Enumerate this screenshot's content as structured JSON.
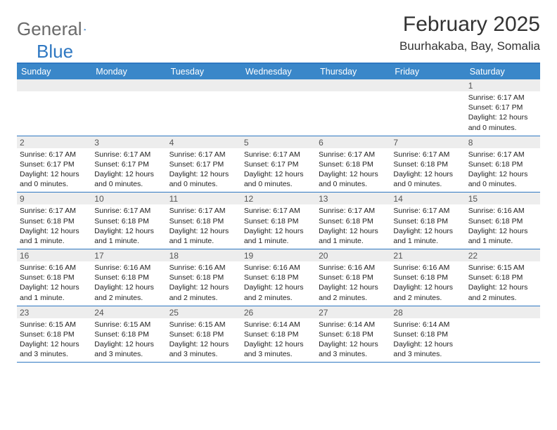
{
  "brand": {
    "part1": "General",
    "part2": "Blue"
  },
  "title": "February 2025",
  "location": "Buurhakaba, Bay, Somalia",
  "colors": {
    "header_bg": "#3a87c9",
    "border": "#2f78c2",
    "daynum_bg": "#ededed",
    "logo_gray": "#6a6a6a",
    "logo_blue": "#2f78c2"
  },
  "days_of_week": [
    "Sunday",
    "Monday",
    "Tuesday",
    "Wednesday",
    "Thursday",
    "Friday",
    "Saturday"
  ],
  "weeks": [
    [
      {
        "n": "",
        "sr": "",
        "ss": "",
        "dl": ""
      },
      {
        "n": "",
        "sr": "",
        "ss": "",
        "dl": ""
      },
      {
        "n": "",
        "sr": "",
        "ss": "",
        "dl": ""
      },
      {
        "n": "",
        "sr": "",
        "ss": "",
        "dl": ""
      },
      {
        "n": "",
        "sr": "",
        "ss": "",
        "dl": ""
      },
      {
        "n": "",
        "sr": "",
        "ss": "",
        "dl": ""
      },
      {
        "n": "1",
        "sr": "Sunrise: 6:17 AM",
        "ss": "Sunset: 6:17 PM",
        "dl": "Daylight: 12 hours and 0 minutes."
      }
    ],
    [
      {
        "n": "2",
        "sr": "Sunrise: 6:17 AM",
        "ss": "Sunset: 6:17 PM",
        "dl": "Daylight: 12 hours and 0 minutes."
      },
      {
        "n": "3",
        "sr": "Sunrise: 6:17 AM",
        "ss": "Sunset: 6:17 PM",
        "dl": "Daylight: 12 hours and 0 minutes."
      },
      {
        "n": "4",
        "sr": "Sunrise: 6:17 AM",
        "ss": "Sunset: 6:17 PM",
        "dl": "Daylight: 12 hours and 0 minutes."
      },
      {
        "n": "5",
        "sr": "Sunrise: 6:17 AM",
        "ss": "Sunset: 6:17 PM",
        "dl": "Daylight: 12 hours and 0 minutes."
      },
      {
        "n": "6",
        "sr": "Sunrise: 6:17 AM",
        "ss": "Sunset: 6:18 PM",
        "dl": "Daylight: 12 hours and 0 minutes."
      },
      {
        "n": "7",
        "sr": "Sunrise: 6:17 AM",
        "ss": "Sunset: 6:18 PM",
        "dl": "Daylight: 12 hours and 0 minutes."
      },
      {
        "n": "8",
        "sr": "Sunrise: 6:17 AM",
        "ss": "Sunset: 6:18 PM",
        "dl": "Daylight: 12 hours and 0 minutes."
      }
    ],
    [
      {
        "n": "9",
        "sr": "Sunrise: 6:17 AM",
        "ss": "Sunset: 6:18 PM",
        "dl": "Daylight: 12 hours and 1 minute."
      },
      {
        "n": "10",
        "sr": "Sunrise: 6:17 AM",
        "ss": "Sunset: 6:18 PM",
        "dl": "Daylight: 12 hours and 1 minute."
      },
      {
        "n": "11",
        "sr": "Sunrise: 6:17 AM",
        "ss": "Sunset: 6:18 PM",
        "dl": "Daylight: 12 hours and 1 minute."
      },
      {
        "n": "12",
        "sr": "Sunrise: 6:17 AM",
        "ss": "Sunset: 6:18 PM",
        "dl": "Daylight: 12 hours and 1 minute."
      },
      {
        "n": "13",
        "sr": "Sunrise: 6:17 AM",
        "ss": "Sunset: 6:18 PM",
        "dl": "Daylight: 12 hours and 1 minute."
      },
      {
        "n": "14",
        "sr": "Sunrise: 6:17 AM",
        "ss": "Sunset: 6:18 PM",
        "dl": "Daylight: 12 hours and 1 minute."
      },
      {
        "n": "15",
        "sr": "Sunrise: 6:16 AM",
        "ss": "Sunset: 6:18 PM",
        "dl": "Daylight: 12 hours and 1 minute."
      }
    ],
    [
      {
        "n": "16",
        "sr": "Sunrise: 6:16 AM",
        "ss": "Sunset: 6:18 PM",
        "dl": "Daylight: 12 hours and 1 minute."
      },
      {
        "n": "17",
        "sr": "Sunrise: 6:16 AM",
        "ss": "Sunset: 6:18 PM",
        "dl": "Daylight: 12 hours and 2 minutes."
      },
      {
        "n": "18",
        "sr": "Sunrise: 6:16 AM",
        "ss": "Sunset: 6:18 PM",
        "dl": "Daylight: 12 hours and 2 minutes."
      },
      {
        "n": "19",
        "sr": "Sunrise: 6:16 AM",
        "ss": "Sunset: 6:18 PM",
        "dl": "Daylight: 12 hours and 2 minutes."
      },
      {
        "n": "20",
        "sr": "Sunrise: 6:16 AM",
        "ss": "Sunset: 6:18 PM",
        "dl": "Daylight: 12 hours and 2 minutes."
      },
      {
        "n": "21",
        "sr": "Sunrise: 6:16 AM",
        "ss": "Sunset: 6:18 PM",
        "dl": "Daylight: 12 hours and 2 minutes."
      },
      {
        "n": "22",
        "sr": "Sunrise: 6:15 AM",
        "ss": "Sunset: 6:18 PM",
        "dl": "Daylight: 12 hours and 2 minutes."
      }
    ],
    [
      {
        "n": "23",
        "sr": "Sunrise: 6:15 AM",
        "ss": "Sunset: 6:18 PM",
        "dl": "Daylight: 12 hours and 3 minutes."
      },
      {
        "n": "24",
        "sr": "Sunrise: 6:15 AM",
        "ss": "Sunset: 6:18 PM",
        "dl": "Daylight: 12 hours and 3 minutes."
      },
      {
        "n": "25",
        "sr": "Sunrise: 6:15 AM",
        "ss": "Sunset: 6:18 PM",
        "dl": "Daylight: 12 hours and 3 minutes."
      },
      {
        "n": "26",
        "sr": "Sunrise: 6:14 AM",
        "ss": "Sunset: 6:18 PM",
        "dl": "Daylight: 12 hours and 3 minutes."
      },
      {
        "n": "27",
        "sr": "Sunrise: 6:14 AM",
        "ss": "Sunset: 6:18 PM",
        "dl": "Daylight: 12 hours and 3 minutes."
      },
      {
        "n": "28",
        "sr": "Sunrise: 6:14 AM",
        "ss": "Sunset: 6:18 PM",
        "dl": "Daylight: 12 hours and 3 minutes."
      },
      {
        "n": "",
        "sr": "",
        "ss": "",
        "dl": ""
      }
    ]
  ]
}
